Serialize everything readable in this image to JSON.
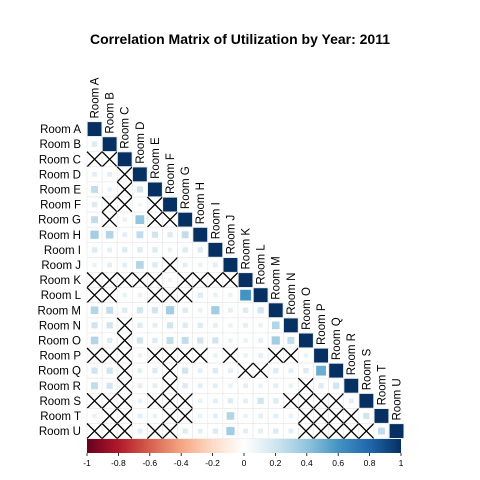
{
  "chart_data": {
    "type": "heatmap",
    "title": "Correlation Matrix of Utilization by Year: 2011",
    "labels": [
      "Room A",
      "Room B",
      "Room C",
      "Room D",
      "Room E",
      "Room F",
      "Room G",
      "Room H",
      "Room I",
      "Room J",
      "Room K",
      "Room L",
      "Room M",
      "Room N",
      "Room O",
      "Room P",
      "Room Q",
      "Room R",
      "Room S",
      "Room T",
      "Room U"
    ],
    "layout": "lower-triangle",
    "insignificant_marker": "X",
    "colorbar": {
      "range": [
        -1,
        1
      ],
      "ticks": [
        "-1",
        "-0.8",
        "-0.6",
        "-0.4",
        "-0.2",
        "0",
        "0.2",
        "0.4",
        "0.6",
        "0.8",
        "1"
      ],
      "colors": [
        "#67001F",
        "#B2182B",
        "#D6604D",
        "#F4A582",
        "#FDDBC7",
        "#FFFFFF",
        "#D1E5F0",
        "#92C5DE",
        "#4393C3",
        "#2166AC",
        "#053061"
      ]
    },
    "matrix": [
      [
        1
      ],
      [
        0.15,
        1
      ],
      [
        null,
        null,
        1
      ],
      [
        0.12,
        0.12,
        null,
        1
      ],
      [
        0.25,
        0.1,
        null,
        0.2,
        1
      ],
      [
        0.15,
        null,
        null,
        0.08,
        null,
        1
      ],
      [
        0.25,
        null,
        0.1,
        0.4,
        null,
        null,
        1
      ],
      [
        0.35,
        0.3,
        0.12,
        0.25,
        0.2,
        0.15,
        0.25,
        1
      ],
      [
        0.15,
        0.12,
        0.15,
        0.15,
        0.15,
        0.1,
        0.15,
        0.15,
        1
      ],
      [
        0.1,
        0.12,
        0.12,
        0.3,
        0.15,
        null,
        0.12,
        0.1,
        0.12,
        1
      ],
      [
        null,
        null,
        null,
        null,
        null,
        0.08,
        null,
        null,
        null,
        null,
        1
      ],
      [
        null,
        null,
        0.1,
        0.1,
        null,
        null,
        null,
        0.15,
        0.1,
        0.1,
        0.6,
        1
      ],
      [
        0.3,
        0.25,
        0.15,
        0.2,
        0.2,
        0.35,
        0.15,
        0.1,
        0.35,
        0.12,
        0.15,
        0.2,
        1
      ],
      [
        0.2,
        0.2,
        null,
        0.15,
        0.12,
        0.2,
        0.15,
        0.15,
        0.12,
        0.1,
        0.12,
        0.1,
        0.3,
        1
      ],
      [
        0.3,
        0.15,
        null,
        0.2,
        0.15,
        0.25,
        0.25,
        0.2,
        0.2,
        0.1,
        0.1,
        0.12,
        0.35,
        0.25,
        1
      ],
      [
        null,
        null,
        null,
        0.1,
        null,
        null,
        null,
        null,
        0.1,
        null,
        0.1,
        0.12,
        null,
        null,
        0.1,
        1
      ],
      [
        0.2,
        0.2,
        null,
        0.12,
        0.15,
        null,
        0.2,
        0.12,
        0.15,
        0.12,
        null,
        null,
        0.15,
        0.12,
        0.15,
        0.5,
        1
      ],
      [
        0.25,
        0.2,
        null,
        0.12,
        0.12,
        null,
        0.15,
        0.12,
        0.12,
        0.1,
        0.12,
        0.1,
        0.12,
        0.1,
        null,
        0.15,
        0.2,
        1
      ],
      [
        null,
        null,
        null,
        0.1,
        null,
        null,
        null,
        0.1,
        0.12,
        0.15,
        0.12,
        0.2,
        0.15,
        null,
        null,
        null,
        null,
        0.12,
        1
      ],
      [
        0.1,
        null,
        null,
        0.12,
        0.1,
        null,
        null,
        0.1,
        0.12,
        0.3,
        0.1,
        0.12,
        0.12,
        0.1,
        null,
        null,
        null,
        null,
        0.2,
        1
      ],
      [
        null,
        null,
        null,
        0.12,
        null,
        null,
        0.15,
        0.12,
        0.15,
        0.35,
        0.12,
        0.12,
        0.15,
        0.12,
        null,
        null,
        null,
        null,
        null,
        0.25,
        1
      ]
    ]
  }
}
